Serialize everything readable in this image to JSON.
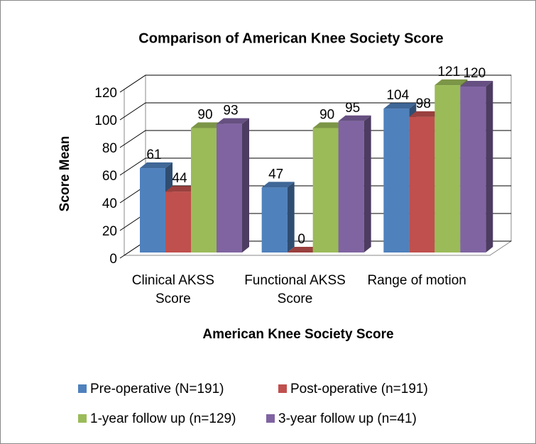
{
  "chart_data": {
    "type": "bar3d",
    "title": "Comparison of American Knee Society Score",
    "x_label": "American Knee Society Score",
    "y_label": "Score Mean",
    "categories": [
      "Clinical AKSS Score",
      "Functional AKSS Score",
      "Range of motion"
    ],
    "series": [
      {
        "name": "Pre-operative (N=191)",
        "color": "#4f81bd",
        "values": [
          61,
          47,
          104
        ]
      },
      {
        "name": "Post-operative (n=191)",
        "color": "#c0504d",
        "values": [
          44,
          0,
          98
        ]
      },
      {
        "name": "1-year follow up (n=129)",
        "color": "#9bbb59",
        "values": [
          90,
          90,
          121
        ]
      },
      {
        "name": "3-year follow up (n=41)",
        "color": "#8064a2",
        "values": [
          93,
          95,
          120
        ]
      }
    ],
    "ylim": [
      0,
      120
    ],
    "yticks": [
      0,
      20,
      40,
      60,
      80,
      100,
      120
    ],
    "grid": true,
    "legend": "bottom"
  }
}
